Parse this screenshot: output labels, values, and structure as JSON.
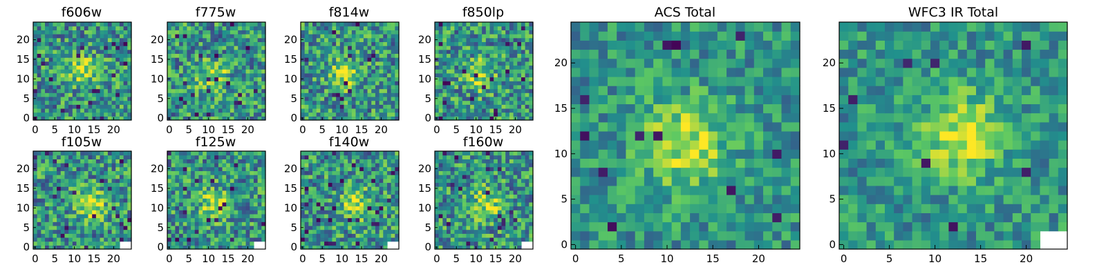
{
  "chart_data": {
    "type": "heatmap",
    "colormap": "viridis",
    "panels": [
      {
        "id": "f606w",
        "title": "f606w",
        "xticks": [
          0,
          5,
          10,
          15,
          20
        ],
        "yticks": [
          0,
          5,
          10,
          15,
          20
        ],
        "grid_size": 24,
        "bright_center": [
          12,
          12
        ]
      },
      {
        "id": "f775w",
        "title": "f775w",
        "xticks": [
          0,
          5,
          10,
          15,
          20
        ],
        "yticks": [
          0,
          5,
          10,
          15,
          20
        ],
        "grid_size": 24,
        "bright_center": [
          11,
          11
        ]
      },
      {
        "id": "f814w",
        "title": "f814w",
        "xticks": [
          0,
          5,
          10,
          15,
          20
        ],
        "yticks": [
          0,
          5,
          10,
          15,
          20
        ],
        "grid_size": 24,
        "bright_center": [
          11,
          11
        ]
      },
      {
        "id": "f850lp",
        "title": "f850lp",
        "xticks": [
          0,
          5,
          10,
          15,
          20
        ],
        "yticks": [
          0,
          5,
          10,
          15,
          20
        ],
        "grid_size": 24,
        "bright_center": [
          11,
          11
        ]
      },
      {
        "id": "f105w",
        "title": "f105w",
        "xticks": [
          0,
          5,
          10,
          15,
          20
        ],
        "yticks": [
          0,
          5,
          10,
          15,
          20
        ],
        "grid_size": 24,
        "bright_center": [
          14,
          11
        ],
        "masked_corner": true
      },
      {
        "id": "f125w",
        "title": "f125w",
        "xticks": [
          0,
          5,
          10,
          15,
          20
        ],
        "yticks": [
          0,
          5,
          10,
          15,
          20
        ],
        "grid_size": 24,
        "bright_center": [
          12,
          11
        ],
        "masked_corner": true
      },
      {
        "id": "f140w",
        "title": "f140w",
        "xticks": [
          0,
          5,
          10,
          15,
          20
        ],
        "yticks": [
          0,
          5,
          10,
          15,
          20
        ],
        "grid_size": 24,
        "bright_center": [
          14,
          11
        ],
        "masked_corner": true
      },
      {
        "id": "f160w",
        "title": "f160w",
        "xticks": [
          0,
          5,
          10,
          15,
          20
        ],
        "yticks": [
          0,
          5,
          10,
          15,
          20
        ],
        "grid_size": 24,
        "bright_center": [
          13,
          11
        ],
        "masked_corner": true
      },
      {
        "id": "acs_total",
        "title": "ACS Total",
        "xticks": [
          0,
          5,
          10,
          15,
          20
        ],
        "yticks": [
          0,
          5,
          10,
          15,
          20
        ],
        "grid_size": 24,
        "bright_center": [
          12,
          11
        ]
      },
      {
        "id": "wfc3_ir_total",
        "title": "WFC3 IR Total",
        "xticks": [
          0,
          5,
          10,
          15,
          20
        ],
        "yticks": [
          0,
          5,
          10,
          15,
          20
        ],
        "grid_size": 24,
        "bright_center": [
          13,
          12
        ],
        "masked_corner": true
      }
    ]
  }
}
